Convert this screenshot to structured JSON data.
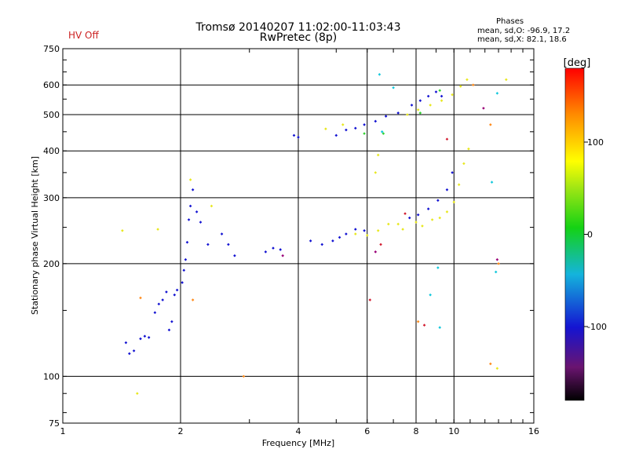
{
  "header": {
    "title_line1": "Tromsø 20140207 11:02:00-11:03:43",
    "title_line2": "RwPretec (8p)",
    "hv_status": "HV Off",
    "hv_color": "#cc2222"
  },
  "stats": {
    "title": "Phases",
    "line1": "mean, sd,O: -96.9, 17.2",
    "line2": "mean, sd,X:  82.1, 18.6"
  },
  "chart_data": {
    "type": "scatter",
    "xlabel": "Frequency [MHz]",
    "ylabel": "Stationary phase Virtual Height [km]",
    "xscale": "log",
    "yscale": "log",
    "xlim": [
      1,
      16
    ],
    "ylim": [
      75,
      750
    ],
    "xticks": [
      1,
      2,
      4,
      6,
      8,
      10,
      16
    ],
    "yticks": [
      75,
      100,
      200,
      300,
      400,
      500,
      600,
      750
    ],
    "major_grid_x": [
      2,
      4,
      6,
      8,
      10
    ],
    "major_grid_y": [
      100,
      200,
      300,
      400,
      500,
      600
    ],
    "grid": true,
    "colorbar": {
      "label": "[deg]",
      "range": [
        -180,
        180
      ],
      "ticks": [
        100,
        0,
        -100
      ],
      "position": "right"
    },
    "series": [
      {
        "color": "#1414d2",
        "points": [
          [
            1.45,
            123
          ],
          [
            1.48,
            115
          ],
          [
            1.52,
            117
          ],
          [
            1.58,
            126
          ],
          [
            1.62,
            128
          ],
          [
            1.66,
            127
          ],
          [
            1.72,
            148
          ],
          [
            1.76,
            156
          ],
          [
            1.8,
            160
          ],
          [
            1.84,
            168
          ],
          [
            1.87,
            133
          ],
          [
            1.9,
            140
          ],
          [
            1.93,
            165
          ],
          [
            1.96,
            170
          ],
          [
            2.02,
            178
          ],
          [
            2.04,
            192
          ],
          [
            2.06,
            205
          ],
          [
            2.08,
            228
          ],
          [
            2.1,
            262
          ],
          [
            2.12,
            285
          ],
          [
            2.15,
            315
          ],
          [
            2.2,
            275
          ],
          [
            2.25,
            258
          ],
          [
            2.35,
            225
          ],
          [
            2.55,
            240
          ],
          [
            2.65,
            225
          ],
          [
            2.75,
            210
          ],
          [
            3.3,
            215
          ],
          [
            3.45,
            220
          ],
          [
            3.6,
            218
          ],
          [
            3.9,
            440
          ],
          [
            4.0,
            435
          ],
          [
            4.3,
            230
          ],
          [
            4.6,
            225
          ],
          [
            4.9,
            230
          ],
          [
            5.1,
            235
          ],
          [
            5.3,
            240
          ],
          [
            5.6,
            247
          ],
          [
            5.9,
            245
          ],
          [
            5.0,
            440
          ],
          [
            5.3,
            455
          ],
          [
            5.6,
            460
          ],
          [
            5.9,
            470
          ],
          [
            6.3,
            480
          ],
          [
            6.7,
            495
          ],
          [
            7.2,
            505
          ],
          [
            7.8,
            530
          ],
          [
            8.2,
            545
          ],
          [
            8.6,
            560
          ],
          [
            9.0,
            575
          ],
          [
            9.3,
            560
          ],
          [
            7.7,
            265
          ],
          [
            8.1,
            270
          ],
          [
            8.6,
            280
          ],
          [
            9.1,
            295
          ],
          [
            9.6,
            315
          ],
          [
            9.9,
            350
          ]
        ]
      },
      {
        "color": "#e8e820",
        "points": [
          [
            1.42,
            245
          ],
          [
            1.55,
            90
          ],
          [
            1.75,
            247
          ],
          [
            2.12,
            335
          ],
          [
            2.4,
            285
          ],
          [
            4.7,
            458
          ],
          [
            5.2,
            470
          ],
          [
            5.6,
            240
          ],
          [
            6.0,
            238
          ],
          [
            6.4,
            245
          ],
          [
            6.8,
            255
          ],
          [
            7.2,
            255
          ],
          [
            7.4,
            247
          ],
          [
            8.0,
            258
          ],
          [
            8.3,
            252
          ],
          [
            8.8,
            262
          ],
          [
            9.2,
            265
          ],
          [
            9.6,
            275
          ],
          [
            10.0,
            292
          ],
          [
            10.3,
            325
          ],
          [
            10.6,
            370
          ],
          [
            10.9,
            405
          ],
          [
            7.6,
            500
          ],
          [
            8.1,
            515
          ],
          [
            8.7,
            530
          ],
          [
            9.3,
            545
          ],
          [
            9.9,
            565
          ],
          [
            10.4,
            595
          ],
          [
            10.8,
            620
          ],
          [
            6.3,
            350
          ],
          [
            6.4,
            390
          ],
          [
            12.9,
            105
          ],
          [
            13.6,
            620
          ]
        ]
      },
      {
        "color": "#14c8dc",
        "points": [
          [
            6.45,
            640
          ],
          [
            7.0,
            590
          ],
          [
            6.55,
            450
          ],
          [
            9.1,
            195
          ],
          [
            9.2,
            135
          ],
          [
            8.7,
            165
          ],
          [
            12.8,
            190
          ],
          [
            12.9,
            570
          ],
          [
            12.5,
            330
          ]
        ]
      },
      {
        "color": "#ff8c1e",
        "points": [
          [
            1.58,
            162
          ],
          [
            2.15,
            160
          ],
          [
            2.9,
            100
          ],
          [
            8.1,
            140
          ],
          [
            11.2,
            600
          ],
          [
            12.4,
            470
          ],
          [
            13.0,
            200
          ],
          [
            12.4,
            108
          ]
        ]
      },
      {
        "color": "#d21e32",
        "points": [
          [
            6.1,
            160
          ],
          [
            6.5,
            225
          ],
          [
            7.5,
            272
          ],
          [
            8.4,
            137
          ],
          [
            9.6,
            430
          ]
        ]
      },
      {
        "color": "#32d232",
        "points": [
          [
            5.9,
            445
          ],
          [
            6.6,
            445
          ],
          [
            8.2,
            505
          ],
          [
            9.2,
            580
          ]
        ]
      },
      {
        "color": "#9a0078",
        "points": [
          [
            3.65,
            210
          ],
          [
            6.3,
            215
          ],
          [
            11.9,
            520
          ],
          [
            12.9,
            205
          ]
        ]
      }
    ]
  }
}
